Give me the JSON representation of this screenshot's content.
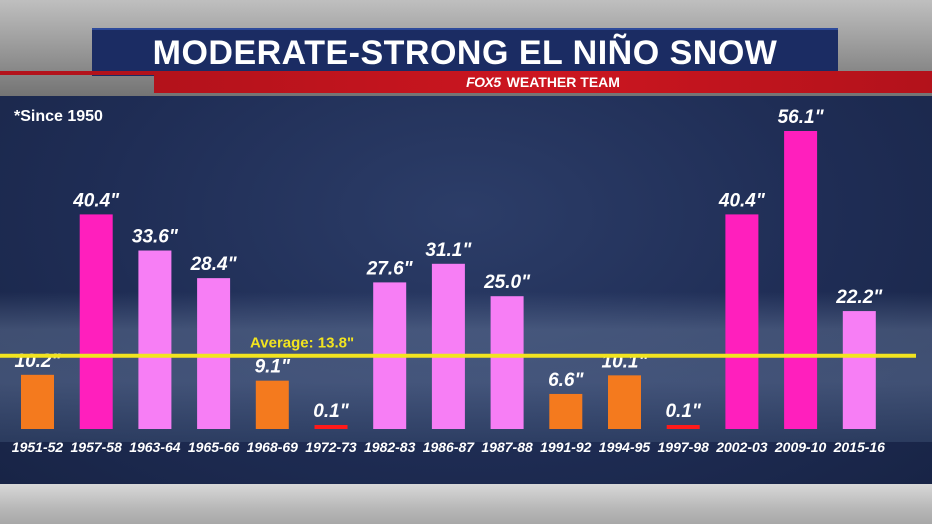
{
  "header": {
    "title": "MODERATE-STRONG EL NIÑO SNOW",
    "logo_text": "FOX5",
    "subtitle": "WEATHER TEAM"
  },
  "note": "*Since 1950",
  "colors": {
    "below_average": "#f47a1e",
    "above_average": "#f77ef5",
    "top_seasons": "#ff1fbd",
    "trace": "#ff1a1a",
    "average_line": "#f2e41f",
    "title_bar": "#1b2c63",
    "subtitle_bar": "#cc1620"
  },
  "chart_data": {
    "type": "bar",
    "categories": [
      "1951-52",
      "1957-58",
      "1963-64",
      "1965-66",
      "1968-69",
      "1972-73",
      "1982-83",
      "1986-87",
      "1987-88",
      "1991-92",
      "1994-95",
      "1997-98",
      "2002-03",
      "2009-10",
      "2015-16"
    ],
    "values": [
      10.2,
      40.4,
      33.6,
      28.4,
      9.1,
      0.1,
      27.6,
      31.1,
      25.0,
      6.6,
      10.1,
      0.1,
      40.4,
      56.1,
      22.2
    ],
    "value_labels": [
      "10.2\"",
      "40.4\"",
      "33.6\"",
      "28.4\"",
      "9.1\"",
      "0.1\"",
      "27.6\"",
      "31.1\"",
      "25.0\"",
      "6.6\"",
      "10.1\"",
      "0.1\"",
      "40.4\"",
      "56.1\"",
      "22.2\""
    ],
    "bar_colors": [
      "below_average",
      "top_seasons",
      "above_average",
      "above_average",
      "below_average",
      "trace",
      "above_average",
      "above_average",
      "above_average",
      "below_average",
      "below_average",
      "trace",
      "top_seasons",
      "top_seasons",
      "above_average"
    ],
    "average": {
      "value": 13.8,
      "label": "Average: 13.8\""
    },
    "title": "MODERATE-STRONG EL NIÑO SNOW",
    "xlabel": "",
    "ylabel": "",
    "ylim": [
      0,
      56.1
    ],
    "grid": false,
    "legend": "none"
  }
}
